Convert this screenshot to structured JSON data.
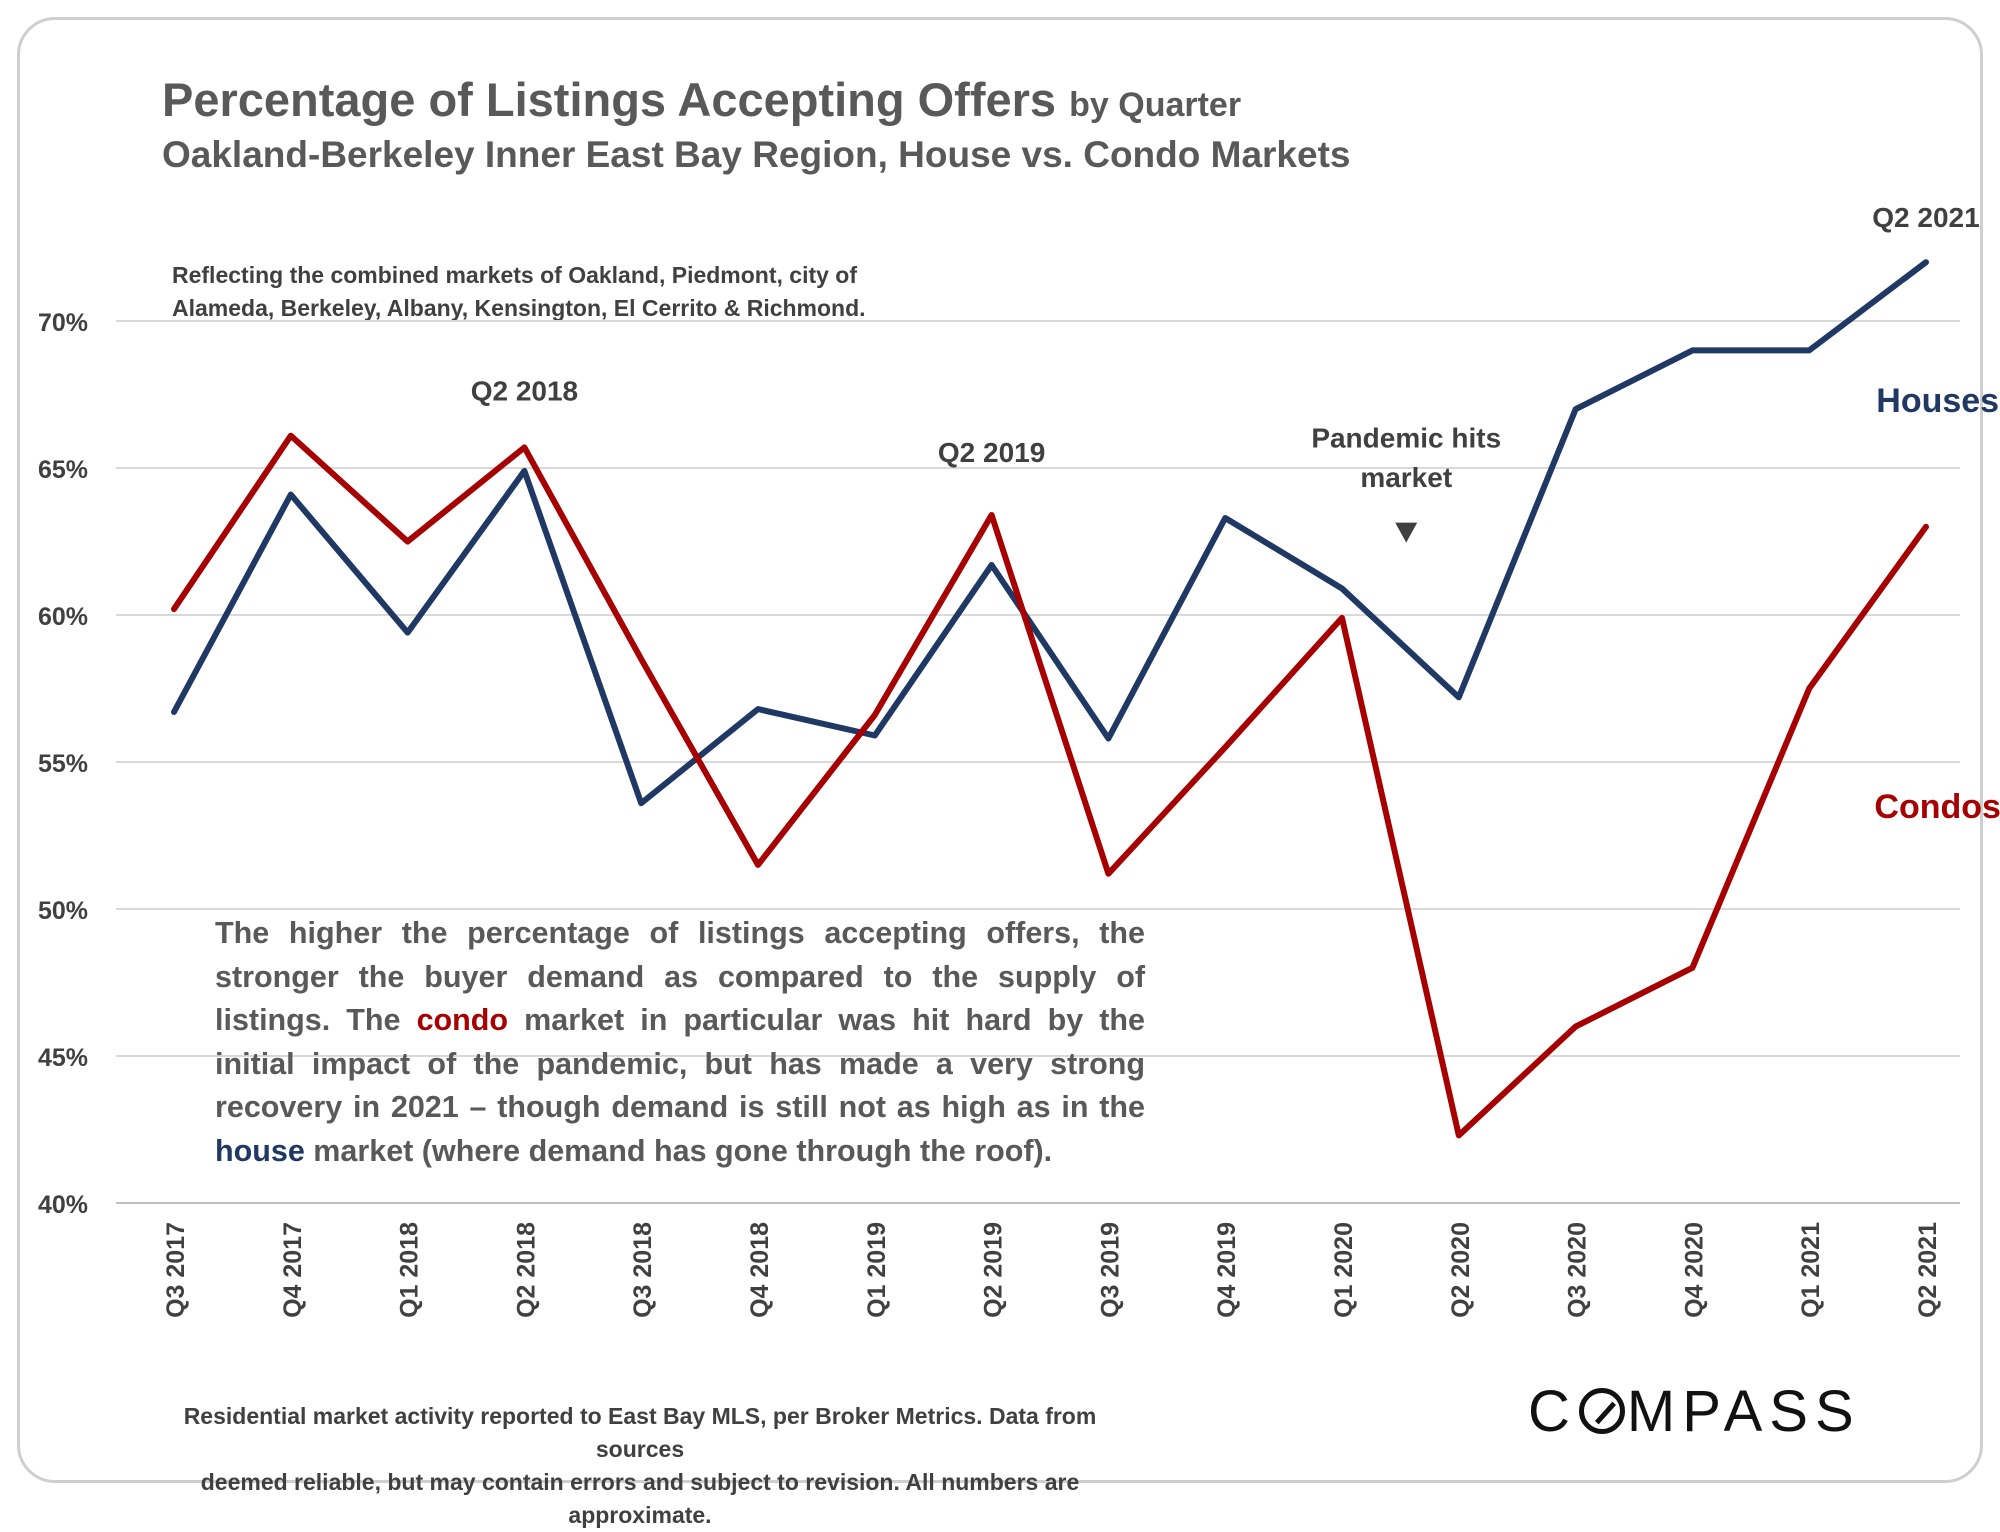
{
  "title_main": "Percentage of Listings Accepting Offers",
  "title_suffix": "by Quarter",
  "subtitle": "Oakland-Berkeley Inner East Bay Region, House vs. Condo Markets",
  "note_line1": "Reflecting the combined markets of Oakland, Piedmont, city of",
  "note_line2": "Alameda, Berkeley, Albany, Kensington, El Cerrito & Richmond.",
  "commentary": {
    "part1": "The higher the percentage of listings accepting offers, the stronger the buyer demand as compared to the supply of listings. The ",
    "highlight_condo": "condo",
    "part2": " market in particular was hit hard by the initial impact of the pandemic, but has made a  very strong recovery in 2021 – though demand is still not as high as in the ",
    "highlight_house": "house",
    "part3": " market (where demand has gone through the roof)."
  },
  "footer_line1": "Residential market activity reported to East Bay MLS, per Broker Metrics. Data from sources",
  "footer_line2": "deemed reliable, but may contain errors and subject to revision. All numbers are approximate.",
  "logo_left": "C",
  "logo_right": "MPASS",
  "chart_data": {
    "type": "line",
    "categories": [
      "Q3 2017",
      "Q4 2017",
      "Q1 2018",
      "Q2 2018",
      "Q3 2018",
      "Q4 2018",
      "Q1 2019",
      "Q2 2019",
      "Q3 2019",
      "Q4 2019",
      "Q1 2020",
      "Q2 2020",
      "Q3 2020",
      "Q4 2020",
      "Q1 2021",
      "Q2 2021"
    ],
    "ylim": [
      40,
      72
    ],
    "yticks": [
      40,
      45,
      50,
      55,
      60,
      65,
      70
    ],
    "ytick_labels": [
      "40%",
      "45%",
      "50%",
      "55%",
      "60%",
      "65%",
      "70%"
    ],
    "grid": true,
    "series": [
      {
        "name": "Houses",
        "color": "#1f3864",
        "values": [
          56.7,
          64.1,
          59.4,
          64.9,
          53.6,
          56.8,
          55.9,
          61.7,
          55.8,
          63.3,
          60.9,
          57.2,
          67.0,
          69.0,
          69.0,
          72.0
        ]
      },
      {
        "name": "Condos",
        "color": "#a60000",
        "values": [
          60.2,
          66.1,
          62.5,
          65.7,
          58.5,
          51.5,
          56.6,
          63.4,
          51.2,
          55.5,
          59.9,
          42.3,
          46.0,
          48.0,
          57.5,
          63.0
        ]
      }
    ],
    "annotations": [
      {
        "text": "Q2 2018",
        "category_index": 3,
        "value": 67.3
      },
      {
        "text": "Q2 2019",
        "category_index": 7,
        "value": 65.2
      },
      {
        "text": "Q2 2021",
        "category_index": 15,
        "value": 73.2
      },
      {
        "text": "Pandemic hits",
        "category_index": 10.55,
        "value": 65.7
      },
      {
        "text": "market",
        "category_index": 10.55,
        "value": 64.35
      }
    ],
    "marker_arrow": {
      "category_index": 10.55,
      "value": 62.8
    },
    "series_labels": [
      {
        "text": "Houses",
        "series": 0,
        "category_index": 15.1,
        "value": 66.9
      },
      {
        "text": "Condos",
        "series": 1,
        "category_index": 15.1,
        "value": 53.1
      }
    ]
  }
}
